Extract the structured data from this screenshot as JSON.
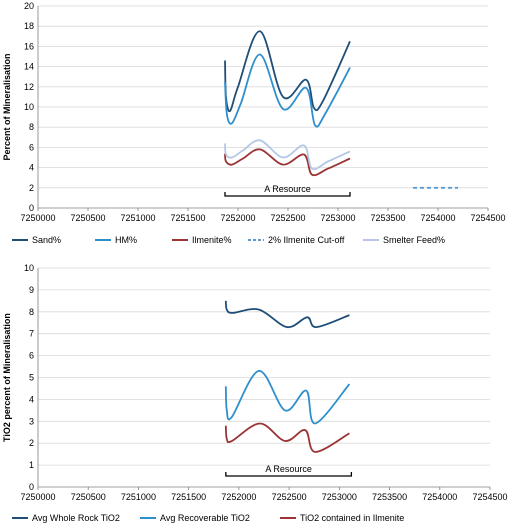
{
  "chart_data": [
    {
      "type": "line",
      "title": "",
      "xlabel": "",
      "ylabel": "Percent of Mineralisation",
      "xlim": [
        7250000,
        7254500
      ],
      "ylim": [
        0,
        20
      ],
      "xticks": [
        "7250000",
        "7250500",
        "7251000",
        "7251500",
        "7252000",
        "7252500",
        "7253000",
        "7253500",
        "7254000",
        "7254500"
      ],
      "yticks": [
        "0",
        "2",
        "4",
        "6",
        "8",
        "10",
        "12",
        "14",
        "16",
        "18",
        "20"
      ],
      "grid": "horizontal",
      "legend": "bottom",
      "series": [
        {
          "name": "Sand%",
          "color": "#1f4e79",
          "dash": "",
          "x": [
            7251870,
            7251880,
            7251920,
            7252000,
            7252220,
            7252450,
            7252680,
            7252760,
            7252850,
            7253120
          ],
          "y": [
            14.6,
            11.0,
            9.6,
            12.0,
            17.5,
            11.0,
            12.7,
            9.9,
            10.6,
            16.5
          ]
        },
        {
          "name": "HM%",
          "color": "#2e8fcc",
          "dash": "",
          "x": [
            7251870,
            7251890,
            7251940,
            7252030,
            7252220,
            7252450,
            7252680,
            7252770,
            7252870,
            7253120
          ],
          "y": [
            12.5,
            9.2,
            8.4,
            10.4,
            15.2,
            9.8,
            11.9,
            8.2,
            9.3,
            13.9
          ]
        },
        {
          "name": "Ilmenite%",
          "color": "#9b3434",
          "dash": "",
          "x": [
            7251870,
            7251880,
            7251940,
            7252050,
            7252220,
            7252450,
            7252660,
            7252740,
            7252900,
            7253120
          ],
          "y": [
            5.4,
            4.6,
            4.3,
            4.9,
            5.8,
            4.3,
            5.3,
            3.3,
            3.9,
            4.9
          ]
        },
        {
          "name": "2% Ilmenite Cut-off",
          "color": "#5b9bd5",
          "dash": "4,3",
          "x": [
            7253750,
            7254200
          ],
          "y": [
            2,
            2
          ]
        },
        {
          "name": "Smelter Feed%",
          "color": "#b4c7e7",
          "dash": "",
          "x": [
            7251870,
            7251880,
            7251940,
            7252050,
            7252220,
            7252450,
            7252660,
            7252740,
            7252900,
            7253120
          ],
          "y": [
            6.4,
            5.3,
            5.0,
            5.7,
            6.7,
            5.0,
            6.2,
            3.9,
            4.6,
            5.6
          ]
        }
      ],
      "annotations": [
        {
          "text": "A Resource",
          "x_start": 7251870,
          "x_end": 7253120
        }
      ]
    },
    {
      "type": "line",
      "title": "",
      "xlabel": "",
      "ylabel": "TiO2 percent of Mineralisation",
      "xlim": [
        7250000,
        7254500
      ],
      "ylim": [
        0,
        10
      ],
      "xticks": [
        "7250000",
        "7250500",
        "7251000",
        "7251500",
        "7252000",
        "7252500",
        "7253000",
        "7253500",
        "7254000",
        "7254500"
      ],
      "yticks": [
        "0",
        "1",
        "2",
        "3",
        "4",
        "5",
        "6",
        "7",
        "8",
        "9",
        "10"
      ],
      "grid": "horizontal",
      "legend": "bottom",
      "series": [
        {
          "name": "Avg Whole Rock TiO2",
          "color": "#1f4e79",
          "dash": "",
          "x": [
            7251870,
            7251880,
            7251940,
            7252200,
            7252480,
            7252680,
            7252770,
            7253100
          ],
          "y": [
            8.5,
            8.1,
            7.95,
            8.1,
            7.3,
            7.75,
            7.3,
            7.85
          ]
        },
        {
          "name": "Avg Recoverable TiO2",
          "color": "#2e8fcc",
          "dash": "",
          "x": [
            7251870,
            7251880,
            7251930,
            7252200,
            7252460,
            7252670,
            7252760,
            7253100
          ],
          "y": [
            4.6,
            3.5,
            3.2,
            5.3,
            3.5,
            4.4,
            2.9,
            4.7
          ]
        },
        {
          "name": "TiO2 contained in Ilmenite",
          "color": "#9b3434",
          "dash": "",
          "x": [
            7251870,
            7251880,
            7251930,
            7252210,
            7252460,
            7252660,
            7252760,
            7253100
          ],
          "y": [
            2.8,
            2.2,
            2.1,
            2.9,
            2.1,
            2.6,
            1.6,
            2.45
          ]
        }
      ],
      "annotations": [
        {
          "text": "A Resource",
          "x_start": 7251870,
          "x_end": 7253120
        }
      ]
    }
  ]
}
